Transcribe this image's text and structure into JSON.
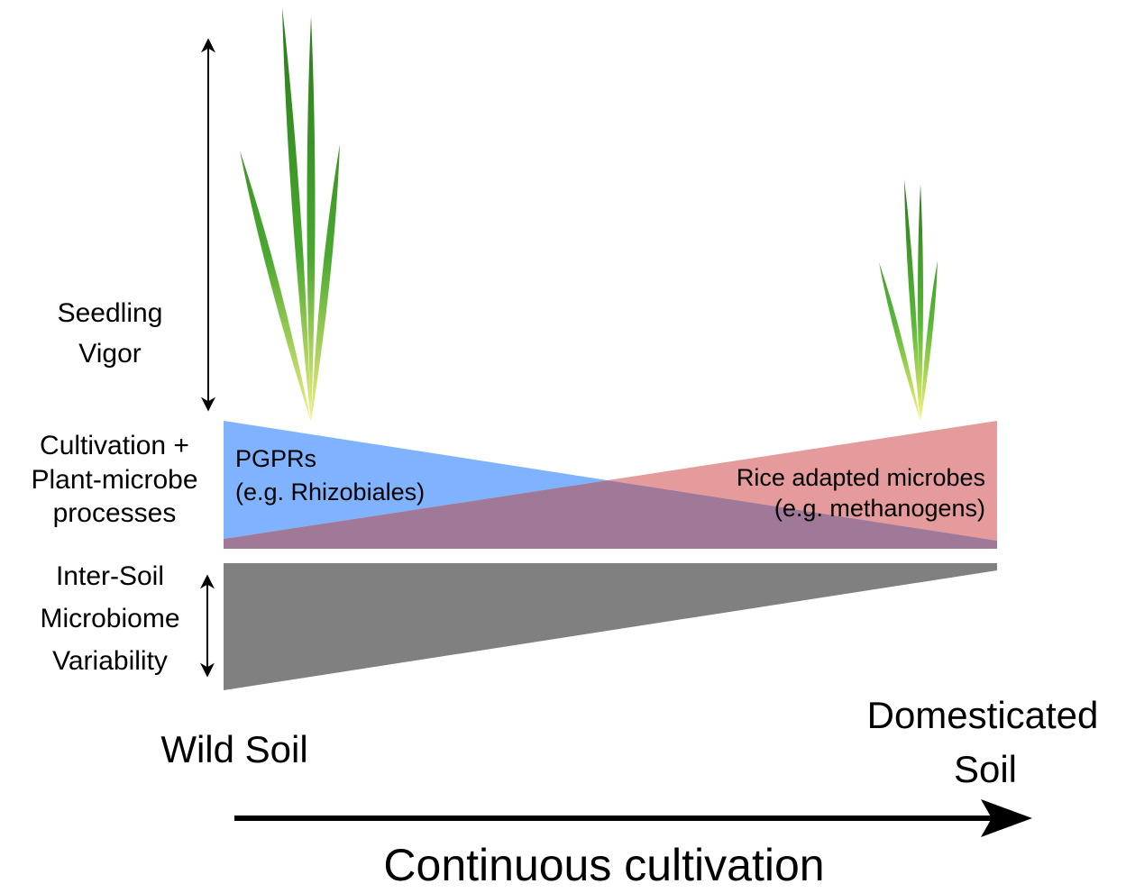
{
  "axis_label": [
    "Seedling",
    "Vigor"
  ],
  "process_label": [
    "Cultivation +",
    "Plant-microbe",
    "processes"
  ],
  "left_group": [
    "PGPRs",
    "(e.g. Rhizobiales)"
  ],
  "right_group": [
    "Rice adapted microbes",
    "(e.g. methanogens)"
  ],
  "variability_label": [
    "Inter-Soil",
    "Microbiome",
    "Variability"
  ],
  "start_label": "Wild Soil",
  "end_label": [
    "Domesticated",
    "Soil"
  ],
  "arrow_label": "Continuous cultivation"
}
